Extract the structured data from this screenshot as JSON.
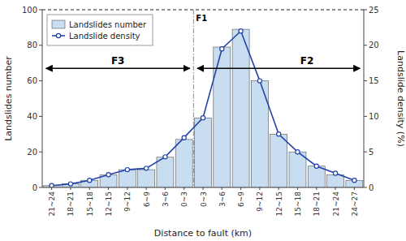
{
  "chart_data": {
    "type": "bar",
    "categories": [
      "21~24",
      "18~21",
      "15~18",
      "12~15",
      "9~12",
      "6~9",
      "3~6",
      "0~3",
      "0~3",
      "3~6",
      "6~9",
      "9~12",
      "12~15",
      "15~18",
      "18~21",
      "21~24",
      "24~27"
    ],
    "series": [
      {
        "name": "Landslides number",
        "type": "bar",
        "color": "#c8ddf0",
        "values": [
          1,
          2,
          4,
          7,
          10,
          10,
          17,
          27,
          39,
          79,
          89,
          60,
          30,
          20,
          12,
          7,
          4
        ]
      },
      {
        "name": "Landslide density",
        "type": "line",
        "color": "#2244aa",
        "axis": "y2",
        "marker": "circle",
        "values": [
          0.25,
          0.5,
          1.0,
          1.8,
          2.5,
          2.7,
          4.3,
          7.0,
          9.8,
          19.5,
          22.0,
          15.0,
          7.5,
          5.0,
          3.0,
          2.0,
          1.0
        ]
      }
    ],
    "x_label": "Distance to fault (km)",
    "y_label": "Landslides number",
    "y2_label": "Landslide density (%)",
    "ylim": [
      0,
      100
    ],
    "yticks": [
      0,
      20,
      40,
      60,
      80,
      100
    ],
    "y2lim": [
      0,
      25
    ],
    "y2ticks": [
      0,
      5,
      10,
      15,
      20,
      25
    ],
    "annotations": [
      "F1",
      "F2",
      "F3"
    ],
    "legend": "upper left",
    "grid": false
  }
}
